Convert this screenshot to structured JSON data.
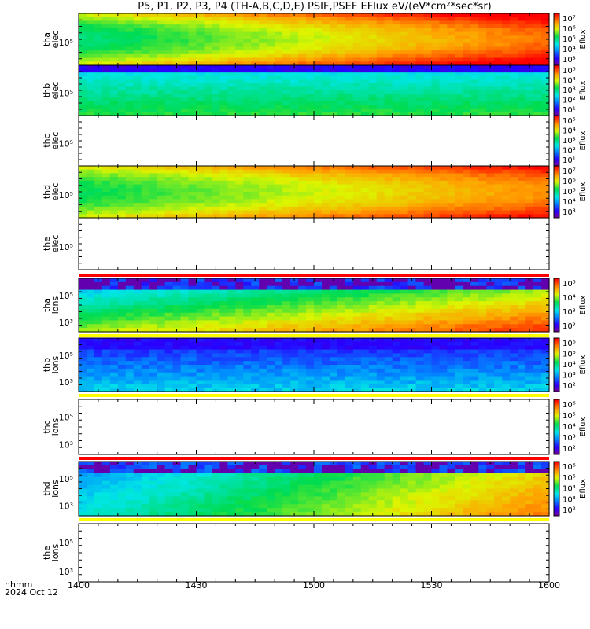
{
  "title": "P5, P1, P2, P3, P4 (TH-A,B,C,D,E) PSIF,PSEF EFlux eV/(eV*cm²*sec*sr)",
  "footer": {
    "format_label": "hhmm",
    "date_label": "2024 Oct 12"
  },
  "chart_data": {
    "type": "heatmap",
    "x_ticks": [
      "1400",
      "1430",
      "1500",
      "1530",
      "1600"
    ],
    "x_range": [
      "14:00",
      "16:00"
    ],
    "colorbar_label": "Eflux",
    "panels": [
      {
        "id": "tha-elec",
        "ylabel": [
          "tha",
          "elec"
        ],
        "ytick": "10⁵",
        "has_data": true,
        "cbar_ticks": [
          "10⁷",
          "10⁶",
          "10⁵",
          "10⁴",
          "10³"
        ],
        "max_cbar_ticks": 7,
        "profile": "tha_elec"
      },
      {
        "id": "thb-elec",
        "ylabel": [
          "thb",
          "elec"
        ],
        "ytick": "10⁵",
        "has_data": true,
        "cbar_ticks": [
          "10⁵",
          "10⁴",
          "10³",
          "10²",
          "10¹"
        ],
        "profile": "thb_elec"
      },
      {
        "id": "thc-elec",
        "ylabel": [
          "thc",
          "elec"
        ],
        "ytick": "10⁵",
        "has_data": false,
        "cbar_ticks": [
          "10⁵",
          "10⁴",
          "10³",
          "10²",
          "10¹"
        ]
      },
      {
        "id": "thd-elec",
        "ylabel": [
          "thd",
          "elec"
        ],
        "ytick": "10⁵",
        "has_data": true,
        "cbar_ticks": [
          "10⁷",
          "10⁶",
          "10⁵",
          "10⁴",
          "10³"
        ],
        "profile": "thd_elec"
      },
      {
        "id": "the-elec",
        "ylabel": [
          "the",
          "elec"
        ],
        "ytick": "10⁵",
        "has_data": false
      },
      {
        "id": "tha-ions",
        "ylabel": [
          "tha",
          "ions"
        ],
        "ytick_upper": "10⁵",
        "ytick_lower": "10³",
        "has_data": true,
        "bar_above": "red",
        "bar_below": "yellow",
        "cbar_ticks": [
          "10⁵",
          "10⁴",
          "10³",
          "10²"
        ],
        "profile": "tha_ions"
      },
      {
        "id": "thb-ions",
        "ylabel": [
          "thb",
          "ions"
        ],
        "ytick_upper": "10⁵",
        "ytick_lower": "10³",
        "has_data": true,
        "bar_below": "yellow",
        "cbar_ticks": [
          "10⁶",
          "10⁵",
          "10⁴",
          "10³",
          "10²"
        ],
        "profile": "thb_ions"
      },
      {
        "id": "thc-ions",
        "ylabel": [
          "thc",
          "ions"
        ],
        "ytick_upper": "10⁵",
        "ytick_lower": "10³",
        "has_data": false,
        "bar_below": "red",
        "cbar_ticks": [
          "10⁶",
          "10⁵",
          "10⁴",
          "10³",
          "10²"
        ]
      },
      {
        "id": "thd-ions",
        "ylabel": [
          "thd",
          "ions"
        ],
        "ytick_upper": "10⁵",
        "ytick_lower": "10³",
        "has_data": true,
        "bar_below": "yellow",
        "cbar_ticks": [
          "10⁶",
          "10⁵",
          "10⁴",
          "10³",
          "10²"
        ],
        "profile": "thd_ions"
      },
      {
        "id": "the-ions",
        "ylabel": [
          "the",
          "ions"
        ],
        "ytick_upper": "10⁵",
        "ytick_lower": "10³",
        "has_data": false
      }
    ]
  }
}
